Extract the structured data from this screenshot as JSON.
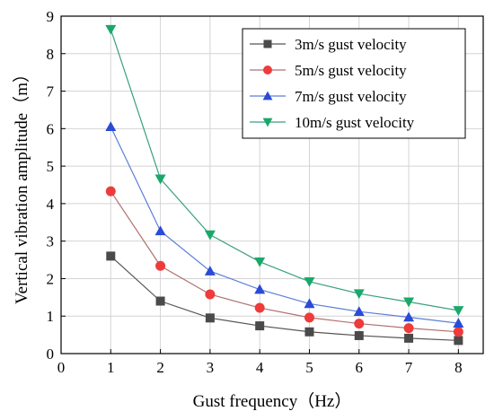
{
  "chart_data": {
    "type": "line",
    "title": "",
    "xlabel": "Gust frequency（Hz）",
    "ylabel": "Vertical vibration amplitude（m）",
    "xlim": [
      0,
      8.5
    ],
    "ylim": [
      0,
      9
    ],
    "xticks": [
      0,
      1,
      2,
      3,
      4,
      5,
      6,
      7,
      8
    ],
    "yticks": [
      0,
      1,
      2,
      3,
      4,
      5,
      6,
      7,
      8,
      9
    ],
    "grid": true,
    "legend_position": "top-right",
    "x": [
      1,
      2,
      3,
      4,
      5,
      6,
      7,
      8
    ],
    "series": [
      {
        "name": "3m/s gust velocity",
        "marker": "square",
        "color": "#4a4a4a",
        "line_color": "#555555",
        "values": [
          2.6,
          1.4,
          0.95,
          0.74,
          0.58,
          0.48,
          0.41,
          0.35
        ]
      },
      {
        "name": "5m/s gust velocity",
        "marker": "circle",
        "color": "#ee3b3b",
        "line_color": "#b07070",
        "values": [
          4.33,
          2.34,
          1.58,
          1.22,
          0.96,
          0.8,
          0.68,
          0.58
        ]
      },
      {
        "name": "7m/s gust velocity",
        "marker": "triangle-up",
        "color": "#2a4bd7",
        "line_color": "#5a7fd8",
        "values": [
          6.05,
          3.27,
          2.2,
          1.71,
          1.33,
          1.12,
          0.97,
          0.81
        ]
      },
      {
        "name": "10m/s gust velocity",
        "marker": "triangle-down",
        "color": "#1aa86a",
        "line_color": "#3aa080",
        "values": [
          8.65,
          4.66,
          3.17,
          2.45,
          1.92,
          1.6,
          1.38,
          1.15
        ]
      }
    ]
  }
}
